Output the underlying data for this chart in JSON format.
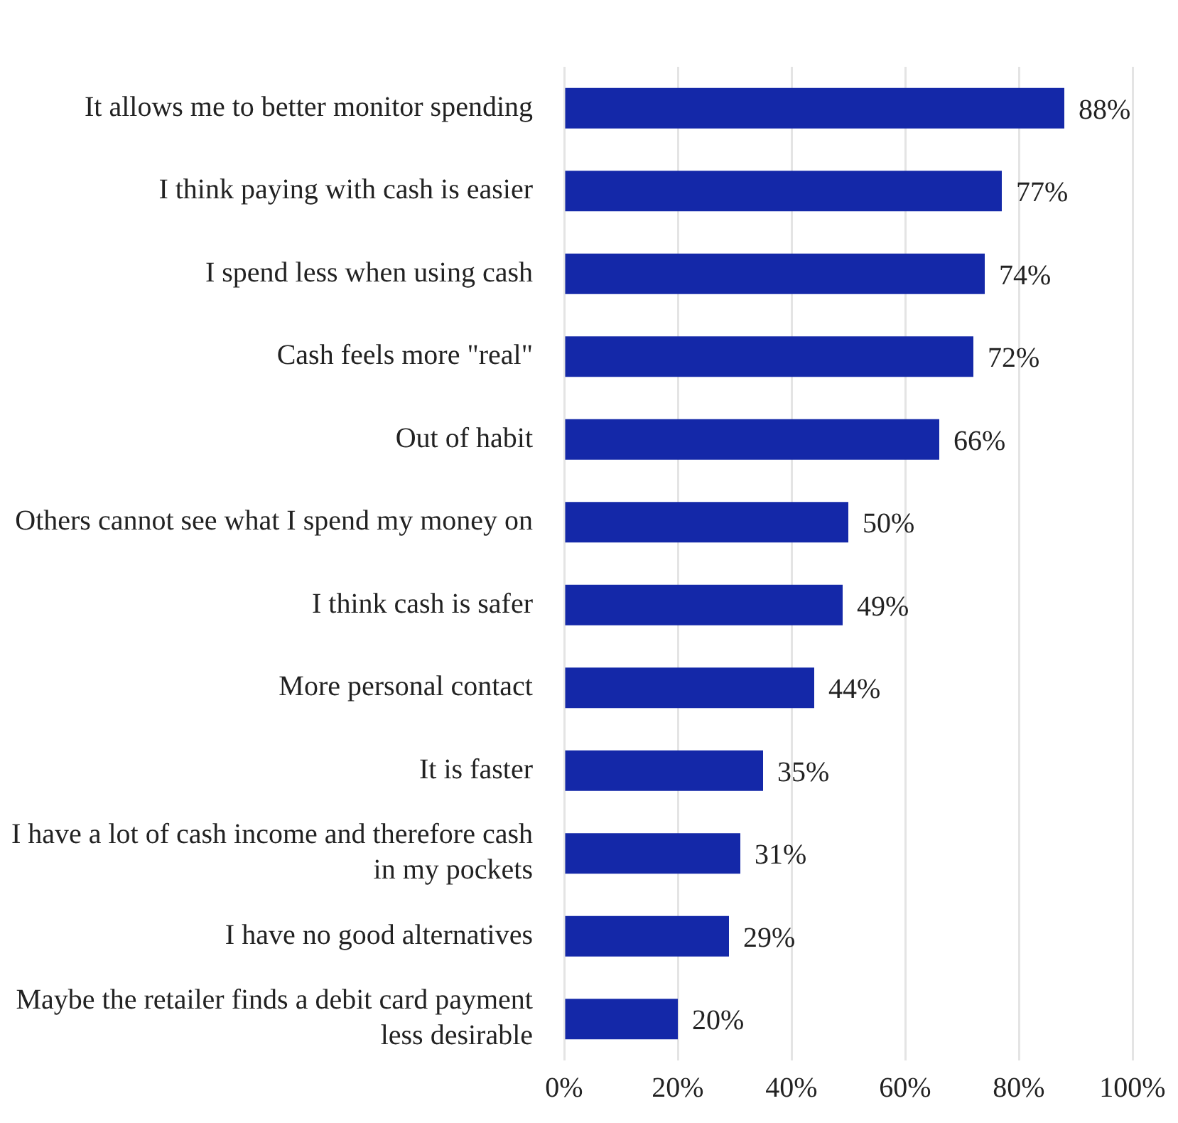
{
  "chart_data": {
    "type": "bar",
    "orientation": "horizontal",
    "categories": [
      "It allows me to better monitor spending",
      "I think paying with cash is easier",
      "I spend less when using cash",
      "Cash feels more \"real\"",
      "Out of habit",
      "Others cannot see what I spend my money on",
      "I think cash is safer",
      "More personal contact",
      "It is faster",
      "I have a lot of cash income and therefore cash in my pockets",
      "I have no good alternatives",
      "Maybe the retailer finds a debit card payment less desirable"
    ],
    "values": [
      88,
      77,
      74,
      72,
      66,
      50,
      49,
      44,
      35,
      31,
      29,
      20
    ],
    "value_labels": [
      "88%",
      "77%",
      "74%",
      "72%",
      "66%",
      "50%",
      "49%",
      "44%",
      "35%",
      "31%",
      "29%",
      "20%"
    ],
    "color": "#1428a8",
    "xlim": [
      0,
      100
    ],
    "xticks": [
      {
        "value": 0,
        "label": "0%"
      },
      {
        "value": 20,
        "label": "20%"
      },
      {
        "value": 40,
        "label": "40%"
      },
      {
        "value": 60,
        "label": "60%"
      },
      {
        "value": 80,
        "label": "80%"
      },
      {
        "value": 100,
        "label": "100%"
      }
    ],
    "grid": "x",
    "legend": false
  }
}
